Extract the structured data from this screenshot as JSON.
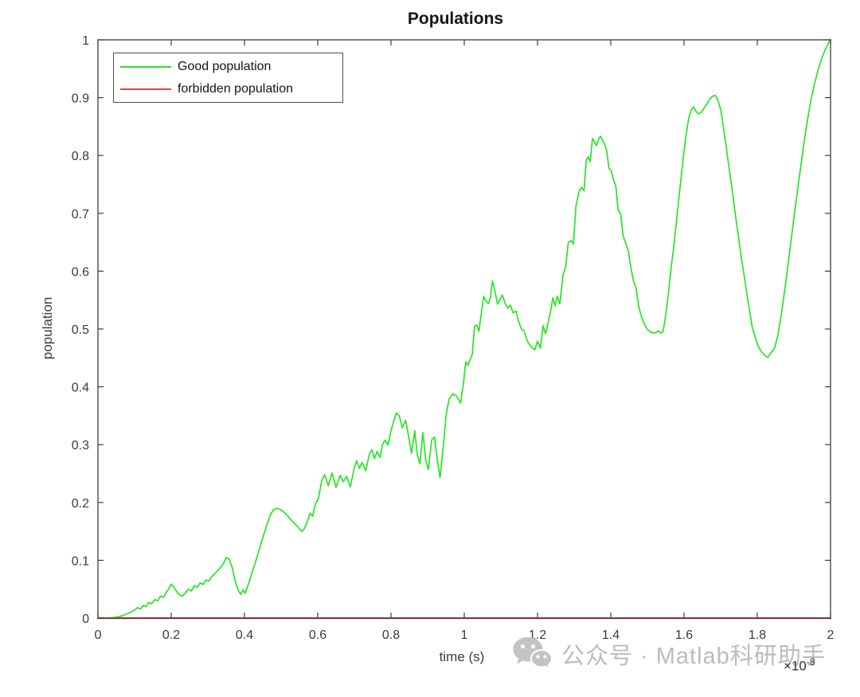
{
  "title": "Populations",
  "axes": {
    "xlabel": "time (s)",
    "ylabel": "population",
    "x_exp_base": "×10",
    "x_exp_power": "-8",
    "x_ticks": [
      0,
      0.2,
      0.4,
      0.6,
      0.8,
      1,
      1.2,
      1.4,
      1.6,
      1.8,
      2
    ],
    "x_tick_labels": [
      "0",
      "0.2",
      "0.4",
      "0.6",
      "0.8",
      "1",
      "1.2",
      "1.4",
      "1.6",
      "1.8",
      "2"
    ],
    "y_ticks": [
      0,
      0.1,
      0.2,
      0.3,
      0.4,
      0.5,
      0.6,
      0.7,
      0.8,
      0.9,
      1
    ],
    "y_tick_labels": [
      "0",
      "0.1",
      "0.2",
      "0.3",
      "0.4",
      "0.5",
      "0.6",
      "0.7",
      "0.8",
      "0.9",
      "1"
    ]
  },
  "chart_data": {
    "type": "line",
    "title": "Populations",
    "xlabel": "time (s)",
    "ylabel": "population",
    "x_unit_exponent": -8,
    "xlim": [
      0,
      2
    ],
    "ylim": [
      0,
      1
    ],
    "grid": false,
    "legend_position": "top-left",
    "series": [
      {
        "name": "Good population",
        "color": "#25e625",
        "width": 1.7,
        "points": [
          [
            0.02,
            0
          ],
          [
            0.04,
            0.001
          ],
          [
            0.055,
            0.002
          ],
          [
            0.07,
            0.005
          ],
          [
            0.085,
            0.009
          ],
          [
            0.098,
            0.013
          ],
          [
            0.108,
            0.018
          ],
          [
            0.116,
            0.016
          ],
          [
            0.124,
            0.022
          ],
          [
            0.131,
            0.02
          ],
          [
            0.139,
            0.027
          ],
          [
            0.147,
            0.025
          ],
          [
            0.155,
            0.032
          ],
          [
            0.163,
            0.03
          ],
          [
            0.171,
            0.038
          ],
          [
            0.179,
            0.036
          ],
          [
            0.187,
            0.045
          ],
          [
            0.194,
            0.051
          ],
          [
            0.2,
            0.059
          ],
          [
            0.207,
            0.054
          ],
          [
            0.215,
            0.046
          ],
          [
            0.223,
            0.04
          ],
          [
            0.231,
            0.038
          ],
          [
            0.239,
            0.044
          ],
          [
            0.247,
            0.05
          ],
          [
            0.255,
            0.047
          ],
          [
            0.263,
            0.056
          ],
          [
            0.271,
            0.053
          ],
          [
            0.279,
            0.061
          ],
          [
            0.287,
            0.058
          ],
          [
            0.295,
            0.066
          ],
          [
            0.303,
            0.064
          ],
          [
            0.311,
            0.072
          ],
          [
            0.319,
            0.077
          ],
          [
            0.327,
            0.082
          ],
          [
            0.335,
            0.088
          ],
          [
            0.343,
            0.095
          ],
          [
            0.351,
            0.105
          ],
          [
            0.359,
            0.101
          ],
          [
            0.367,
            0.087
          ],
          [
            0.375,
            0.063
          ],
          [
            0.383,
            0.048
          ],
          [
            0.39,
            0.041
          ],
          [
            0.396,
            0.049
          ],
          [
            0.402,
            0.043
          ],
          [
            0.412,
            0.061
          ],
          [
            0.422,
            0.081
          ],
          [
            0.432,
            0.101
          ],
          [
            0.442,
            0.122
          ],
          [
            0.452,
            0.143
          ],
          [
            0.462,
            0.163
          ],
          [
            0.471,
            0.179
          ],
          [
            0.48,
            0.188
          ],
          [
            0.49,
            0.19
          ],
          [
            0.5,
            0.187
          ],
          [
            0.512,
            0.181
          ],
          [
            0.524,
            0.172
          ],
          [
            0.536,
            0.164
          ],
          [
            0.547,
            0.157
          ],
          [
            0.556,
            0.15
          ],
          [
            0.563,
            0.154
          ],
          [
            0.571,
            0.166
          ],
          [
            0.579,
            0.181
          ],
          [
            0.586,
            0.176
          ],
          [
            0.594,
            0.198
          ],
          [
            0.602,
            0.207
          ],
          [
            0.611,
            0.238
          ],
          [
            0.619,
            0.248
          ],
          [
            0.629,
            0.229
          ],
          [
            0.639,
            0.251
          ],
          [
            0.65,
            0.226
          ],
          [
            0.661,
            0.247
          ],
          [
            0.67,
            0.236
          ],
          [
            0.679,
            0.245
          ],
          [
            0.689,
            0.227
          ],
          [
            0.699,
            0.257
          ],
          [
            0.706,
            0.272
          ],
          [
            0.714,
            0.259
          ],
          [
            0.721,
            0.269
          ],
          [
            0.731,
            0.255
          ],
          [
            0.741,
            0.284
          ],
          [
            0.748,
            0.291
          ],
          [
            0.755,
            0.276
          ],
          [
            0.762,
            0.288
          ],
          [
            0.77,
            0.278
          ],
          [
            0.777,
            0.3
          ],
          [
            0.784,
            0.308
          ],
          [
            0.792,
            0.299
          ],
          [
            0.8,
            0.324
          ],
          [
            0.806,
            0.338
          ],
          [
            0.815,
            0.355
          ],
          [
            0.823,
            0.349
          ],
          [
            0.831,
            0.329
          ],
          [
            0.84,
            0.342
          ],
          [
            0.849,
            0.312
          ],
          [
            0.856,
            0.285
          ],
          [
            0.865,
            0.324
          ],
          [
            0.872,
            0.282
          ],
          [
            0.879,
            0.267
          ],
          [
            0.887,
            0.321
          ],
          [
            0.895,
            0.273
          ],
          [
            0.902,
            0.257
          ],
          [
            0.911,
            0.308
          ],
          [
            0.919,
            0.313
          ],
          [
            0.927,
            0.271
          ],
          [
            0.934,
            0.243
          ],
          [
            0.943,
            0.299
          ],
          [
            0.951,
            0.354
          ],
          [
            0.959,
            0.379
          ],
          [
            0.969,
            0.388
          ],
          [
            0.979,
            0.384
          ],
          [
            0.99,
            0.372
          ],
          [
            0.998,
            0.407
          ],
          [
            1.004,
            0.443
          ],
          [
            1.01,
            0.437
          ],
          [
            1.016,
            0.447
          ],
          [
            1.022,
            0.456
          ],
          [
            1.028,
            0.504
          ],
          [
            1.034,
            0.507
          ],
          [
            1.04,
            0.496
          ],
          [
            1.047,
            0.529
          ],
          [
            1.053,
            0.556
          ],
          [
            1.06,
            0.548
          ],
          [
            1.066,
            0.544
          ],
          [
            1.071,
            0.553
          ],
          [
            1.077,
            0.583
          ],
          [
            1.084,
            0.565
          ],
          [
            1.091,
            0.543
          ],
          [
            1.098,
            0.551
          ],
          [
            1.104,
            0.559
          ],
          [
            1.112,
            0.544
          ],
          [
            1.119,
            0.536
          ],
          [
            1.126,
            0.541
          ],
          [
            1.133,
            0.528
          ],
          [
            1.141,
            0.531
          ],
          [
            1.148,
            0.514
          ],
          [
            1.156,
            0.5
          ],
          [
            1.163,
            0.497
          ],
          [
            1.171,
            0.481
          ],
          [
            1.179,
            0.472
          ],
          [
            1.186,
            0.467
          ],
          [
            1.193,
            0.464
          ],
          [
            1.2,
            0.479
          ],
          [
            1.208,
            0.467
          ],
          [
            1.215,
            0.506
          ],
          [
            1.222,
            0.492
          ],
          [
            1.23,
            0.514
          ],
          [
            1.237,
            0.534
          ],
          [
            1.242,
            0.554
          ],
          [
            1.248,
            0.54
          ],
          [
            1.254,
            0.557
          ],
          [
            1.261,
            0.544
          ],
          [
            1.27,
            0.594
          ],
          [
            1.277,
            0.608
          ],
          [
            1.284,
            0.649
          ],
          [
            1.291,
            0.653
          ],
          [
            1.298,
            0.647
          ],
          [
            1.305,
            0.712
          ],
          [
            1.313,
            0.737
          ],
          [
            1.32,
            0.745
          ],
          [
            1.327,
            0.739
          ],
          [
            1.333,
            0.791
          ],
          [
            1.339,
            0.798
          ],
          [
            1.344,
            0.789
          ],
          [
            1.35,
            0.829
          ],
          [
            1.356,
            0.824
          ],
          [
            1.361,
            0.817
          ],
          [
            1.367,
            0.829
          ],
          [
            1.372,
            0.833
          ],
          [
            1.378,
            0.826
          ],
          [
            1.383,
            0.819
          ],
          [
            1.389,
            0.809
          ],
          [
            1.395,
            0.778
          ],
          [
            1.401,
            0.774
          ],
          [
            1.407,
            0.759
          ],
          [
            1.414,
            0.747
          ],
          [
            1.42,
            0.706
          ],
          [
            1.427,
            0.699
          ],
          [
            1.434,
            0.661
          ],
          [
            1.441,
            0.648
          ],
          [
            1.448,
            0.635
          ],
          [
            1.455,
            0.606
          ],
          [
            1.462,
            0.583
          ],
          [
            1.469,
            0.571
          ],
          [
            1.477,
            0.537
          ],
          [
            1.484,
            0.521
          ],
          [
            1.491,
            0.509
          ],
          [
            1.499,
            0.5
          ],
          [
            1.508,
            0.495
          ],
          [
            1.516,
            0.493
          ],
          [
            1.524,
            0.494
          ],
          [
            1.53,
            0.497
          ],
          [
            1.537,
            0.493
          ],
          [
            1.543,
            0.496
          ],
          [
            1.55,
            0.523
          ],
          [
            1.557,
            0.559
          ],
          [
            1.564,
            0.601
          ],
          [
            1.571,
            0.638
          ],
          [
            1.578,
            0.678
          ],
          [
            1.585,
            0.72
          ],
          [
            1.592,
            0.761
          ],
          [
            1.599,
            0.801
          ],
          [
            1.606,
            0.838
          ],
          [
            1.613,
            0.865
          ],
          [
            1.62,
            0.879
          ],
          [
            1.626,
            0.884
          ],
          [
            1.632,
            0.877
          ],
          [
            1.639,
            0.872
          ],
          [
            1.646,
            0.874
          ],
          [
            1.653,
            0.88
          ],
          [
            1.661,
            0.888
          ],
          [
            1.669,
            0.896
          ],
          [
            1.677,
            0.902
          ],
          [
            1.685,
            0.904
          ],
          [
            1.693,
            0.895
          ],
          [
            1.701,
            0.877
          ],
          [
            1.708,
            0.847
          ],
          [
            1.715,
            0.816
          ],
          [
            1.722,
            0.783
          ],
          [
            1.73,
            0.748
          ],
          [
            1.737,
            0.714
          ],
          [
            1.744,
            0.68
          ],
          [
            1.751,
            0.649
          ],
          [
            1.758,
            0.617
          ],
          [
            1.766,
            0.585
          ],
          [
            1.773,
            0.555
          ],
          [
            1.78,
            0.527
          ],
          [
            1.787,
            0.501
          ],
          [
            1.795,
            0.485
          ],
          [
            1.802,
            0.471
          ],
          [
            1.81,
            0.462
          ],
          [
            1.819,
            0.455
          ],
          [
            1.829,
            0.451
          ],
          [
            1.839,
            0.46
          ],
          [
            1.848,
            0.468
          ],
          [
            1.857,
            0.491
          ],
          [
            1.867,
            0.531
          ],
          [
            1.877,
            0.576
          ],
          [
            1.887,
            0.626
          ],
          [
            1.897,
            0.676
          ],
          [
            1.907,
            0.726
          ],
          [
            1.917,
            0.773
          ],
          [
            1.927,
            0.819
          ],
          [
            1.937,
            0.861
          ],
          [
            1.947,
            0.897
          ],
          [
            1.957,
            0.926
          ],
          [
            1.967,
            0.95
          ],
          [
            1.977,
            0.97
          ],
          [
            1.987,
            0.985
          ],
          [
            1.995,
            0.995
          ],
          [
            2,
            1
          ]
        ]
      },
      {
        "name": "forbidden population",
        "color": "#ef4136",
        "width": 2.2,
        "points": [
          [
            0,
            0
          ],
          [
            2,
            0
          ]
        ]
      }
    ]
  },
  "watermark": {
    "icon": "wechat-icon",
    "text": "公众号 · Matlab科研助手",
    "color": "#bcbcbc"
  },
  "colors": {
    "axis": "#3c3c3c",
    "tick_text": "#3a3a3a",
    "title_text": "#161616",
    "background": "#ffffff"
  }
}
